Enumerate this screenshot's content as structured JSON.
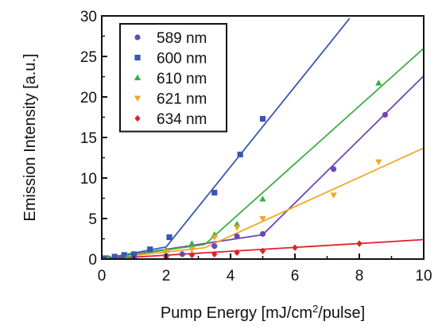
{
  "chart_data": {
    "type": "scatter",
    "xlabel": "Pump Energy [mJ/cm",
    "xlabel_sup": "2",
    "xlabel_tail": "/pulse]",
    "ylabel": "Emission Intensity [a.u.]",
    "xlim": [
      0,
      10
    ],
    "ylim": [
      0,
      30
    ],
    "xticks": [
      "0",
      "2",
      "4",
      "6",
      "8",
      "10"
    ],
    "yticks": [
      "0",
      "5",
      "10",
      "15",
      "20",
      "25",
      "30"
    ],
    "legend_position": "top-left",
    "grid": false,
    "series": [
      {
        "name": "589 nm",
        "color": "#6a48b4",
        "marker": "circle",
        "points": [
          [
            0.2,
            0.1
          ],
          [
            0.6,
            0.2
          ],
          [
            1.0,
            0.3
          ],
          [
            2.0,
            0.4
          ],
          [
            2.5,
            0.6
          ],
          [
            3.5,
            1.6
          ],
          [
            4.2,
            2.8
          ],
          [
            5.0,
            3.1
          ],
          [
            7.2,
            11.1
          ],
          [
            8.8,
            17.8
          ]
        ],
        "fit": [
          [
            0,
            0
          ],
          [
            5.0,
            3.0
          ],
          [
            10,
            22.6
          ]
        ]
      },
      {
        "name": "600 nm",
        "color": "#3a55b3",
        "marker": "square",
        "points": [
          [
            0.1,
            0.1
          ],
          [
            0.4,
            0.3
          ],
          [
            0.7,
            0.5
          ],
          [
            1.0,
            0.6
          ],
          [
            1.5,
            1.2
          ],
          [
            2.1,
            2.7
          ],
          [
            3.5,
            8.2
          ],
          [
            4.3,
            12.9
          ],
          [
            5.0,
            17.3
          ]
        ],
        "fit": [
          [
            0,
            0
          ],
          [
            2.0,
            1.5
          ],
          [
            7.7,
            29.7
          ]
        ]
      },
      {
        "name": "610 nm",
        "color": "#3fae45",
        "marker": "triangle-up",
        "points": [
          [
            0.2,
            0.1
          ],
          [
            0.8,
            0.3
          ],
          [
            2.0,
            1.1
          ],
          [
            2.8,
            1.9
          ],
          [
            3.5,
            3.0
          ],
          [
            4.2,
            4.3
          ],
          [
            5.0,
            7.4
          ],
          [
            8.6,
            21.7
          ]
        ],
        "fit": [
          [
            0,
            0
          ],
          [
            3.2,
            1.8
          ],
          [
            10,
            26.0
          ]
        ]
      },
      {
        "name": "621 nm",
        "color": "#f5a623",
        "marker": "triangle-down",
        "points": [
          [
            2.0,
            0.9
          ],
          [
            2.8,
            1.2
          ],
          [
            3.5,
            2.7
          ],
          [
            4.2,
            3.9
          ],
          [
            5.0,
            5.0
          ],
          [
            7.2,
            7.9
          ],
          [
            8.6,
            12.0
          ]
        ],
        "fit": [
          [
            0,
            0
          ],
          [
            3.2,
            1.4
          ],
          [
            10,
            13.7
          ]
        ]
      },
      {
        "name": "634 nm",
        "color": "#e0202a",
        "marker": "diamond",
        "points": [
          [
            2.0,
            0.2
          ],
          [
            2.8,
            0.5
          ],
          [
            3.5,
            0.6
          ],
          [
            4.2,
            0.8
          ],
          [
            5.0,
            1.0
          ],
          [
            6.0,
            1.4
          ],
          [
            8.0,
            1.9
          ]
        ],
        "fit": [
          [
            0,
            0
          ],
          [
            10,
            2.4
          ]
        ]
      }
    ]
  }
}
